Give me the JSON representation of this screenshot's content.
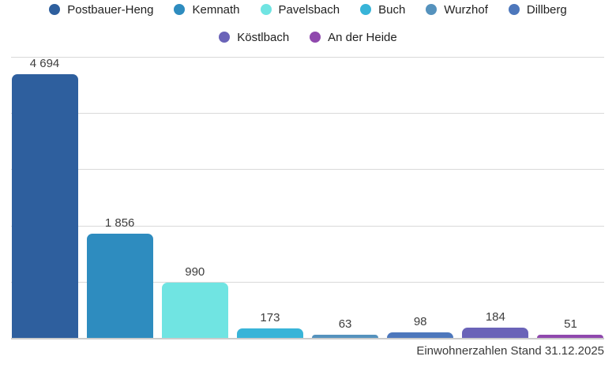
{
  "chart_data": {
    "type": "bar",
    "title": "",
    "xlabel": "",
    "ylabel": "",
    "ylim": [
      0,
      5000
    ],
    "ytick_step": 1000,
    "grid": "horizontal",
    "legend_position": "top",
    "legend_rows": [
      6,
      2
    ],
    "categories": [
      "Postbauer-Heng",
      "Kemnath",
      "Pavelsbach",
      "Buch",
      "Wurzhof",
      "Dillberg",
      "Köstlbach",
      "An der Heide"
    ],
    "values": [
      4694,
      1856,
      990,
      173,
      63,
      98,
      184,
      51
    ],
    "value_labels": [
      "4 694",
      "1 856",
      "990",
      "173",
      "63",
      "98",
      "184",
      "51"
    ],
    "colors": [
      "#2e5f9e",
      "#2e8cbf",
      "#70e4e2",
      "#38b4d8",
      "#5592bd",
      "#4d77bc",
      "#6a63b8",
      "#8f48ad"
    ],
    "slugs": [
      "postbauer-heng",
      "kemnath",
      "pavelsbach",
      "buch",
      "wurzhof",
      "dillberg",
      "koestlbach",
      "an-der-heide"
    ],
    "footnote": "Einwohnerzahlen Stand 31.12.2025"
  }
}
